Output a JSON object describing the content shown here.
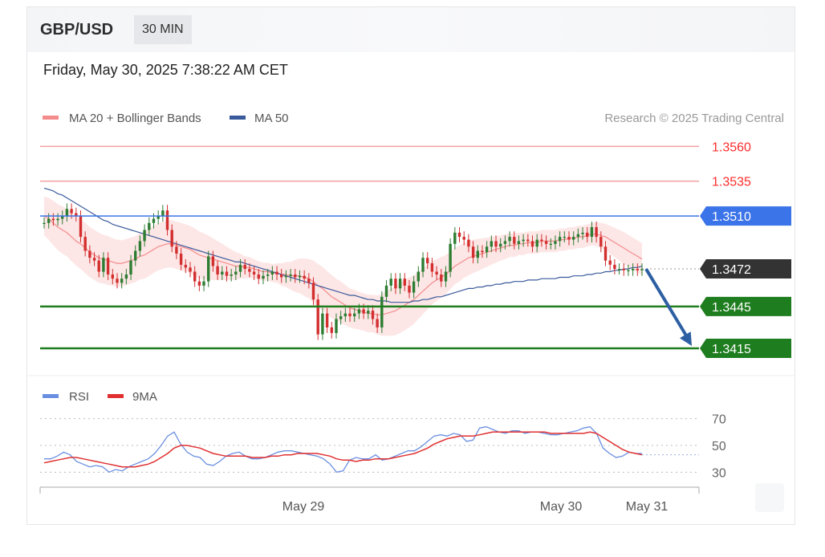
{
  "header": {
    "pair": "GBP/USD",
    "timeframe": "30 MIN",
    "datetime": "Friday, May 30, 2025 7:38:22 AM CET"
  },
  "legend": {
    "ma20": "MA 20 + Bollinger Bands",
    "ma50": "MA 50",
    "credit": "Research © 2025 Trading Central",
    "rsi": "RSI",
    "rsi_ma": "9MA"
  },
  "colors": {
    "ma20": "#f48c8c",
    "ma50": "#3a5a9c",
    "rsi": "#6b8fe0",
    "rsi_ma": "#e03030",
    "bull": "#d32f2f",
    "bear": "#2e7d32",
    "support": "#1e7d1e",
    "pivot": "#3b73e8",
    "resistance": "#ff2b2b",
    "forecast_arrow": "#2d5fa3"
  },
  "chart_data": [
    {
      "type": "candlestick",
      "title": "GBP/USD",
      "ylim": [
        1.34,
        1.357
      ],
      "x_tick_labels": [
        "May 29",
        "May 30",
        "May 31"
      ],
      "levels": [
        {
          "label": "1.3560",
          "value": 1.356,
          "role": "resistance"
        },
        {
          "label": "1.3535",
          "value": 1.3535,
          "role": "resistance"
        },
        {
          "label": "1.3510",
          "value": 1.351,
          "role": "pivot"
        },
        {
          "label": "1.3472",
          "value": 1.3472,
          "role": "last"
        },
        {
          "label": "1.3445",
          "value": 1.3445,
          "role": "support"
        },
        {
          "label": "1.3415",
          "value": 1.3415,
          "role": "support"
        }
      ],
      "close": [
        1.3505,
        1.3508,
        1.3507,
        1.3508,
        1.351,
        1.3515,
        1.3512,
        1.351,
        1.3495,
        1.3485,
        1.348,
        1.3478,
        1.347,
        1.348,
        1.3468,
        1.3465,
        1.3462,
        1.3465,
        1.3468,
        1.3478,
        1.3485,
        1.3492,
        1.35,
        1.3505,
        1.3508,
        1.351,
        1.3514,
        1.35,
        1.3488,
        1.3483,
        1.3475,
        1.3473,
        1.347,
        1.3463,
        1.346,
        1.3463,
        1.3481,
        1.3474,
        1.3468,
        1.347,
        1.3467,
        1.3468,
        1.347,
        1.3475,
        1.3472,
        1.347,
        1.3468,
        1.3465,
        1.3467,
        1.3468,
        1.347,
        1.3468,
        1.3466,
        1.3467,
        1.3468,
        1.3466,
        1.3467,
        1.3465,
        1.3462,
        1.345,
        1.3425,
        1.344,
        1.343,
        1.3426,
        1.3436,
        1.3438,
        1.344,
        1.3438,
        1.344,
        1.3443,
        1.344,
        1.3442,
        1.3436,
        1.343,
        1.3452,
        1.346,
        1.3465,
        1.3458,
        1.3465,
        1.346,
        1.3455,
        1.3463,
        1.347,
        1.348,
        1.3476,
        1.347,
        1.3468,
        1.3463,
        1.347,
        1.349,
        1.3498,
        1.3495,
        1.3493,
        1.3488,
        1.348,
        1.3485,
        1.3484,
        1.3488,
        1.3492,
        1.3488,
        1.349,
        1.3492,
        1.3495,
        1.349,
        1.3492,
        1.3493,
        1.3492,
        1.3488,
        1.3493,
        1.3492,
        1.349,
        1.349,
        1.3492,
        1.3495,
        1.3495,
        1.3493,
        1.3495,
        1.3497,
        1.3498,
        1.3495,
        1.3502,
        1.3495,
        1.3488,
        1.3478,
        1.3475,
        1.3472,
        1.3472,
        1.3471,
        1.3471,
        1.3472,
        1.3471,
        1.3472
      ],
      "open": [
        1.3505,
        1.3505,
        1.3508,
        1.3507,
        1.3508,
        1.351,
        1.3515,
        1.3512,
        1.351,
        1.3495,
        1.3485,
        1.348,
        1.3478,
        1.347,
        1.348,
        1.3468,
        1.3465,
        1.3462,
        1.3465,
        1.3468,
        1.3478,
        1.3485,
        1.3492,
        1.35,
        1.3505,
        1.3508,
        1.351,
        1.3514,
        1.35,
        1.3488,
        1.3483,
        1.3475,
        1.3473,
        1.347,
        1.3463,
        1.346,
        1.3463,
        1.3481,
        1.3474,
        1.3468,
        1.347,
        1.3467,
        1.3468,
        1.347,
        1.3475,
        1.3472,
        1.347,
        1.3468,
        1.3465,
        1.3467,
        1.3468,
        1.347,
        1.3468,
        1.3466,
        1.3467,
        1.3468,
        1.3466,
        1.3467,
        1.3465,
        1.3462,
        1.345,
        1.3425,
        1.344,
        1.343,
        1.3426,
        1.3436,
        1.3438,
        1.344,
        1.3438,
        1.344,
        1.3443,
        1.344,
        1.3442,
        1.3436,
        1.343,
        1.3452,
        1.346,
        1.3465,
        1.3458,
        1.3465,
        1.346,
        1.3455,
        1.3463,
        1.347,
        1.348,
        1.3476,
        1.347,
        1.3468,
        1.3463,
        1.347,
        1.349,
        1.3498,
        1.3495,
        1.3493,
        1.3488,
        1.348,
        1.3485,
        1.3484,
        1.3488,
        1.3492,
        1.3488,
        1.349,
        1.3492,
        1.3495,
        1.349,
        1.3492,
        1.3493,
        1.3492,
        1.3488,
        1.3493,
        1.3492,
        1.349,
        1.349,
        1.3492,
        1.3495,
        1.3495,
        1.3493,
        1.3495,
        1.3497,
        1.3498,
        1.3495,
        1.3502,
        1.3495,
        1.3488,
        1.3478,
        1.3475,
        1.3472,
        1.3472,
        1.3471,
        1.3471,
        1.3472,
        1.3471
      ],
      "ma20": [
        1.351,
        1.3508,
        1.3505,
        1.3502,
        1.35,
        1.3498,
        1.3495,
        1.3492,
        1.349,
        1.3487,
        1.3484,
        1.3482,
        1.348,
        1.3479,
        1.3478,
        1.3477,
        1.3476,
        1.3476,
        1.3477,
        1.3478,
        1.3479,
        1.3481,
        1.3482,
        1.3484,
        1.3486,
        1.3488,
        1.3489,
        1.349,
        1.349,
        1.3489,
        1.3488,
        1.3487,
        1.3486,
        1.3484,
        1.3482,
        1.3481,
        1.348,
        1.3479,
        1.3478,
        1.3477,
        1.3476,
        1.3475,
        1.3474,
        1.3474,
        1.3473,
        1.3473,
        1.3472,
        1.3471,
        1.347,
        1.347,
        1.3469,
        1.3469,
        1.3468,
        1.3468,
        1.3467,
        1.3467,
        1.3467,
        1.3466,
        1.3465,
        1.3463,
        1.346,
        1.3458,
        1.3455,
        1.3452,
        1.345,
        1.3448,
        1.3446,
        1.3444,
        1.3443,
        1.3442,
        1.3441,
        1.344,
        1.344,
        1.3439,
        1.3439,
        1.344,
        1.3441,
        1.3442,
        1.3444,
        1.3446,
        1.3448,
        1.345,
        1.3453,
        1.3456,
        1.3459,
        1.3462,
        1.3464,
        1.3466,
        1.3468,
        1.3471,
        1.3474,
        1.3476,
        1.3478,
        1.348,
        1.3481,
        1.3482,
        1.3483,
        1.3484,
        1.3485,
        1.3486,
        1.3487,
        1.3488,
        1.3489,
        1.3489,
        1.349,
        1.349,
        1.3491,
        1.3491,
        1.3491,
        1.3492,
        1.3492,
        1.3492,
        1.3492,
        1.3493,
        1.3493,
        1.3494,
        1.3494,
        1.3495,
        1.3495,
        1.3496,
        1.3497,
        1.3497,
        1.3496,
        1.3495,
        1.3493,
        1.3491,
        1.3489,
        1.3487,
        1.3485,
        1.3483,
        1.3481,
        1.3479
      ],
      "ma50": [
        1.353,
        1.3529,
        1.3528,
        1.3526,
        1.3525,
        1.3523,
        1.3521,
        1.3519,
        1.3517,
        1.3515,
        1.3513,
        1.3511,
        1.3509,
        1.3507,
        1.3506,
        1.3504,
        1.3503,
        1.3502,
        1.3501,
        1.35,
        1.3499,
        1.3498,
        1.3497,
        1.3496,
        1.3495,
        1.3494,
        1.3493,
        1.3492,
        1.3491,
        1.349,
        1.3489,
        1.3488,
        1.3487,
        1.3486,
        1.3485,
        1.3484,
        1.3483,
        1.3482,
        1.3481,
        1.348,
        1.3479,
        1.3478,
        1.3477,
        1.3477,
        1.3476,
        1.3475,
        1.3474,
        1.3473,
        1.3472,
        1.3471,
        1.347,
        1.3469,
        1.3468,
        1.3467,
        1.3466,
        1.3465,
        1.3464,
        1.3463,
        1.3462,
        1.3461,
        1.346,
        1.3459,
        1.3458,
        1.3457,
        1.3456,
        1.3455,
        1.3454,
        1.3453,
        1.3453,
        1.3452,
        1.3451,
        1.345,
        1.345,
        1.3449,
        1.3449,
        1.3449,
        1.3448,
        1.3448,
        1.3448,
        1.3448,
        1.3448,
        1.3449,
        1.3449,
        1.345,
        1.345,
        1.3451,
        1.3452,
        1.3452,
        1.3453,
        1.3454,
        1.3455,
        1.3456,
        1.3457,
        1.3458,
        1.3458,
        1.3459,
        1.3459,
        1.346,
        1.346,
        1.3461,
        1.3461,
        1.3462,
        1.3462,
        1.3463,
        1.3463,
        1.3463,
        1.3464,
        1.3464,
        1.3464,
        1.3465,
        1.3465,
        1.3465,
        1.3465,
        1.3466,
        1.3466,
        1.3466,
        1.3467,
        1.3467,
        1.3467,
        1.3468,
        1.3468,
        1.3469,
        1.3469,
        1.347,
        1.347,
        1.3471,
        1.3471,
        1.3472,
        1.3472,
        1.3473,
        1.3473,
        1.3474
      ],
      "bb_width": [
        0.0028,
        0.003,
        0.0032,
        0.0033,
        0.0034,
        0.0034,
        0.0035,
        0.0035,
        0.0036,
        0.0036,
        0.0036,
        0.0036,
        0.0036,
        0.0035,
        0.0035,
        0.0034,
        0.0034,
        0.0033,
        0.0033,
        0.0033,
        0.0033,
        0.0033,
        0.0034,
        0.0034,
        0.0034,
        0.0034,
        0.0034,
        0.0034,
        0.0034,
        0.0034,
        0.0034,
        0.0034,
        0.0034,
        0.0034,
        0.0034,
        0.0033,
        0.0032,
        0.003,
        0.0028,
        0.0026,
        0.0024,
        0.0022,
        0.002,
        0.0018,
        0.0016,
        0.0015,
        0.0014,
        0.0013,
        0.0013,
        0.0013,
        0.0013,
        0.0014,
        0.0016,
        0.0018,
        0.002,
        0.0023,
        0.0025,
        0.0027,
        0.0028,
        0.003,
        0.0031,
        0.0031,
        0.0031,
        0.0031,
        0.003,
        0.003,
        0.0029,
        0.0028,
        0.0028,
        0.0027,
        0.0027,
        0.0027,
        0.0027,
        0.0028,
        0.003,
        0.0032,
        0.0034,
        0.0035,
        0.0036,
        0.0036,
        0.0036,
        0.0035,
        0.0034,
        0.0033,
        0.0032,
        0.0031,
        0.003,
        0.0029,
        0.0028,
        0.0027,
        0.0026,
        0.0026,
        0.0025,
        0.0025,
        0.0024,
        0.0023,
        0.0022,
        0.0021,
        0.002,
        0.0019,
        0.0018,
        0.0018,
        0.0017,
        0.0017,
        0.0016,
        0.0016,
        0.0016,
        0.0016,
        0.0016,
        0.0016,
        0.0016,
        0.0016,
        0.0016,
        0.0016,
        0.0016,
        0.0016,
        0.0016,
        0.0016,
        0.0016,
        0.0016,
        0.0016,
        0.0017,
        0.0018,
        0.0019,
        0.002,
        0.0021,
        0.0022,
        0.0023,
        0.0023,
        0.0023,
        0.0023,
        0.0023,
        0.0023
      ],
      "forecast_arrow": {
        "from": 1.3472,
        "to": 1.3415
      }
    },
    {
      "type": "line",
      "title": "RSI",
      "ylim": [
        20,
        80
      ],
      "y_ticks": [
        30,
        50,
        70
      ],
      "series": [
        {
          "name": "RSI",
          "values": [
            40,
            40,
            42,
            45,
            43,
            38,
            36,
            34,
            35,
            34,
            30,
            32,
            31,
            34,
            36,
            38,
            40,
            44,
            50,
            57,
            60,
            51,
            45,
            42,
            41,
            36,
            35,
            38,
            42,
            44,
            45,
            42,
            40,
            40,
            41,
            43,
            45,
            46,
            46,
            45,
            44,
            43,
            42,
            40,
            36,
            30,
            31,
            39,
            41,
            40,
            40,
            43,
            39,
            40,
            42,
            44,
            46,
            46,
            49,
            53,
            57,
            58,
            57,
            59,
            58,
            53,
            54,
            63,
            64,
            62,
            60,
            59,
            61,
            61,
            59,
            60,
            60,
            59,
            58,
            58,
            59,
            60,
            61,
            63,
            64,
            59,
            48,
            44,
            41,
            42,
            45,
            44,
            44
          ]
        },
        {
          "name": "9MA",
          "values": [
            37,
            38,
            39,
            40,
            41,
            41,
            40,
            39,
            38,
            37,
            36,
            35,
            34,
            34,
            34,
            35,
            36,
            38,
            41,
            44,
            48,
            50,
            50,
            49,
            48,
            46,
            44,
            43,
            42,
            42,
            42,
            42,
            41,
            41,
            41,
            42,
            42,
            43,
            43,
            44,
            44,
            44,
            44,
            43,
            42,
            40,
            39,
            39,
            38,
            39,
            39,
            40,
            40,
            40,
            41,
            42,
            43,
            44,
            46,
            48,
            51,
            53,
            55,
            56,
            57,
            57,
            57,
            58,
            59,
            60,
            60,
            60,
            60,
            60,
            60,
            60,
            60,
            60,
            59,
            59,
            59,
            59,
            59,
            59,
            60,
            59,
            56,
            53,
            50,
            47,
            45,
            44,
            43
          ]
        }
      ]
    }
  ]
}
